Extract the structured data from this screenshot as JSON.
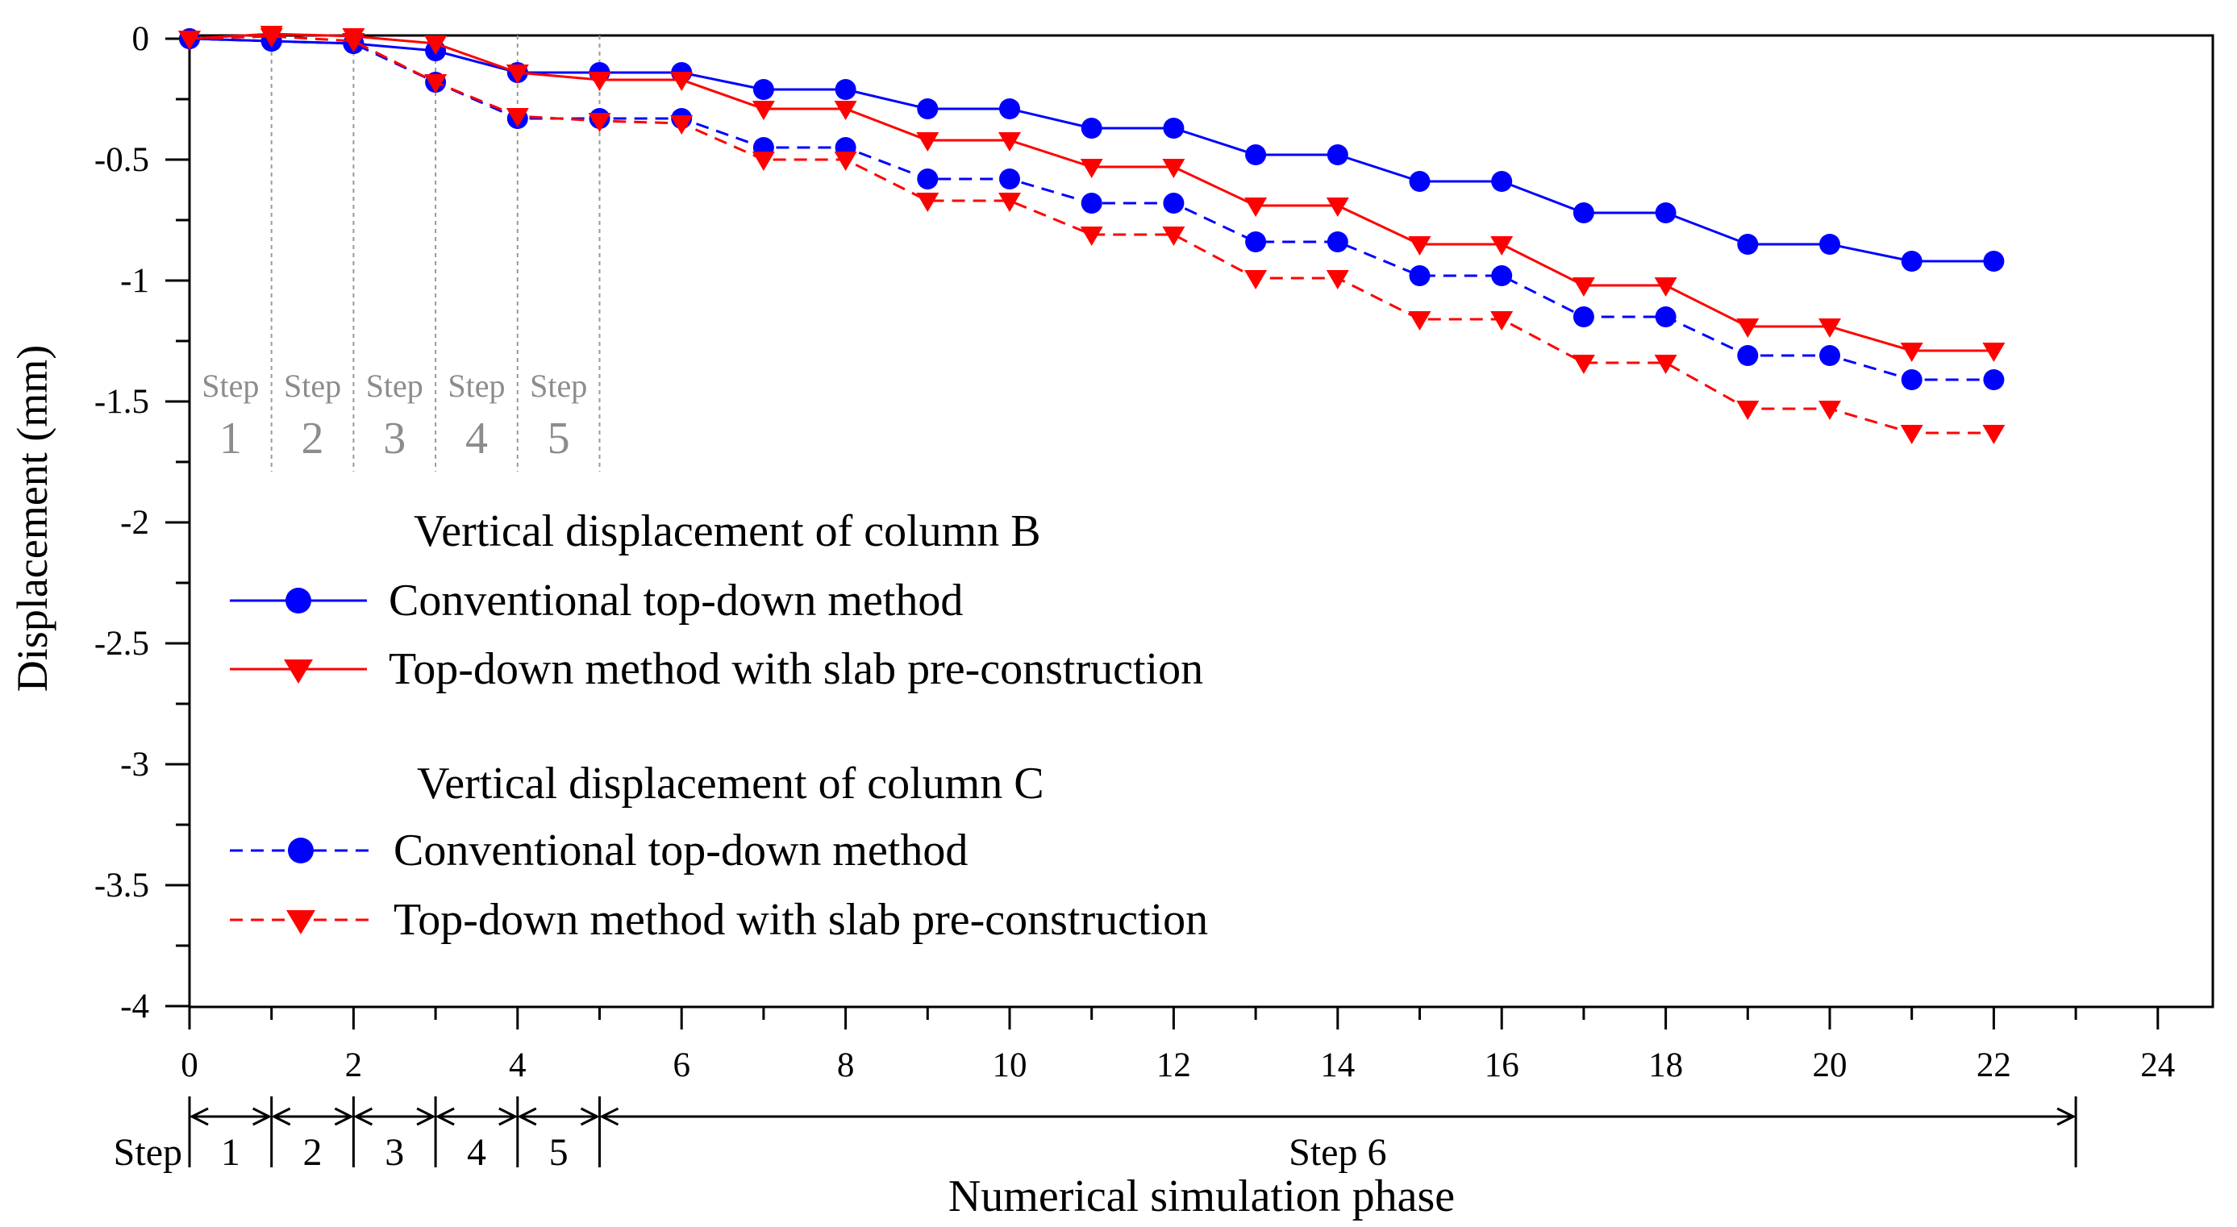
{
  "chart_data": {
    "type": "line",
    "title": "",
    "xlabel": "Numerical simulation phase",
    "ylabel": "Displacement (mm)",
    "xlim": [
      0,
      24.5
    ],
    "ylim": [
      -4,
      0
    ],
    "x_ticks": [
      0,
      2,
      4,
      6,
      8,
      10,
      12,
      14,
      16,
      18,
      20,
      22,
      24
    ],
    "x_tick_labels": [
      "0",
      "2",
      "4",
      "6",
      "8",
      "10",
      "12",
      "14",
      "16",
      "18",
      "20",
      "22",
      "24"
    ],
    "y_ticks": [
      0,
      -0.5,
      -1,
      -1.5,
      -2,
      -2.5,
      -3,
      -3.5,
      -4
    ],
    "y_tick_labels": [
      "0",
      "-0.5",
      "-1",
      "-1.5",
      "-2",
      "-2.5",
      "-3",
      "-3.5",
      "-4"
    ],
    "x": [
      0,
      1,
      2,
      3,
      4,
      5,
      6,
      7,
      8,
      9,
      10,
      11,
      12,
      13,
      14,
      15,
      16,
      17,
      18,
      19,
      20,
      21,
      22
    ],
    "series": [
      {
        "name": "Conventional top-down method",
        "group": "Vertical displacement of column B",
        "color": "#0000ff",
        "marker": "circle",
        "dashed": false,
        "values": [
          0,
          -0.01,
          -0.02,
          -0.05,
          -0.14,
          -0.14,
          -0.14,
          -0.21,
          -0.21,
          -0.29,
          -0.29,
          -0.37,
          -0.37,
          -0.48,
          -0.48,
          -0.59,
          -0.59,
          -0.72,
          -0.72,
          -0.85,
          -0.85,
          -0.92,
          -0.92
        ]
      },
      {
        "name": "Top-down method with slab pre-construction",
        "group": "Vertical displacement of column B",
        "color": "#ff0000",
        "marker": "triangle-down",
        "dashed": false,
        "values": [
          0,
          0.02,
          0.01,
          -0.02,
          -0.14,
          -0.17,
          -0.17,
          -0.29,
          -0.29,
          -0.42,
          -0.42,
          -0.53,
          -0.53,
          -0.69,
          -0.69,
          -0.85,
          -0.85,
          -1.02,
          -1.02,
          -1.19,
          -1.19,
          -1.29,
          -1.29
        ]
      },
      {
        "name": "Conventional top-down method",
        "group": "Vertical displacement of column C",
        "color": "#0000ff",
        "marker": "circle",
        "dashed": true,
        "values": [
          0,
          -0.01,
          -0.02,
          -0.18,
          -0.33,
          -0.33,
          -0.33,
          -0.45,
          -0.45,
          -0.58,
          -0.58,
          -0.68,
          -0.68,
          -0.84,
          -0.84,
          -0.98,
          -0.98,
          -1.15,
          -1.15,
          -1.31,
          -1.31,
          -1.41,
          -1.41
        ]
      },
      {
        "name": "Top-down method with slab pre-construction",
        "group": "Vertical displacement of column C",
        "color": "#ff0000",
        "marker": "triangle-down",
        "dashed": true,
        "values": [
          0,
          0.01,
          -0.01,
          -0.18,
          -0.32,
          -0.34,
          -0.35,
          -0.5,
          -0.5,
          -0.67,
          -0.67,
          -0.81,
          -0.81,
          -0.99,
          -0.99,
          -1.16,
          -1.16,
          -1.34,
          -1.34,
          -1.53,
          -1.53,
          -1.63,
          -1.63
        ]
      }
    ],
    "step_boundaries": [
      1,
      2,
      3,
      4,
      5
    ],
    "in_plot_steps": [
      {
        "word": "Step",
        "num": "1",
        "x": 0.5
      },
      {
        "word": "Step",
        "num": "2",
        "x": 1.5
      },
      {
        "word": "Step",
        "num": "3",
        "x": 2.5
      },
      {
        "word": "Step",
        "num": "4",
        "x": 3.5
      },
      {
        "word": "Step",
        "num": "5",
        "x": 4.5
      }
    ],
    "phase_axis": {
      "prefix": "Step",
      "boundaries": [
        0,
        1,
        2,
        3,
        4,
        5,
        23
      ],
      "labels": [
        "1",
        "2",
        "3",
        "4",
        "5",
        "Step 6"
      ]
    },
    "legend": {
      "position": "lower-left",
      "group_b_title": "Vertical displacement of column B",
      "group_c_title": "Vertical displacement of column C"
    }
  }
}
